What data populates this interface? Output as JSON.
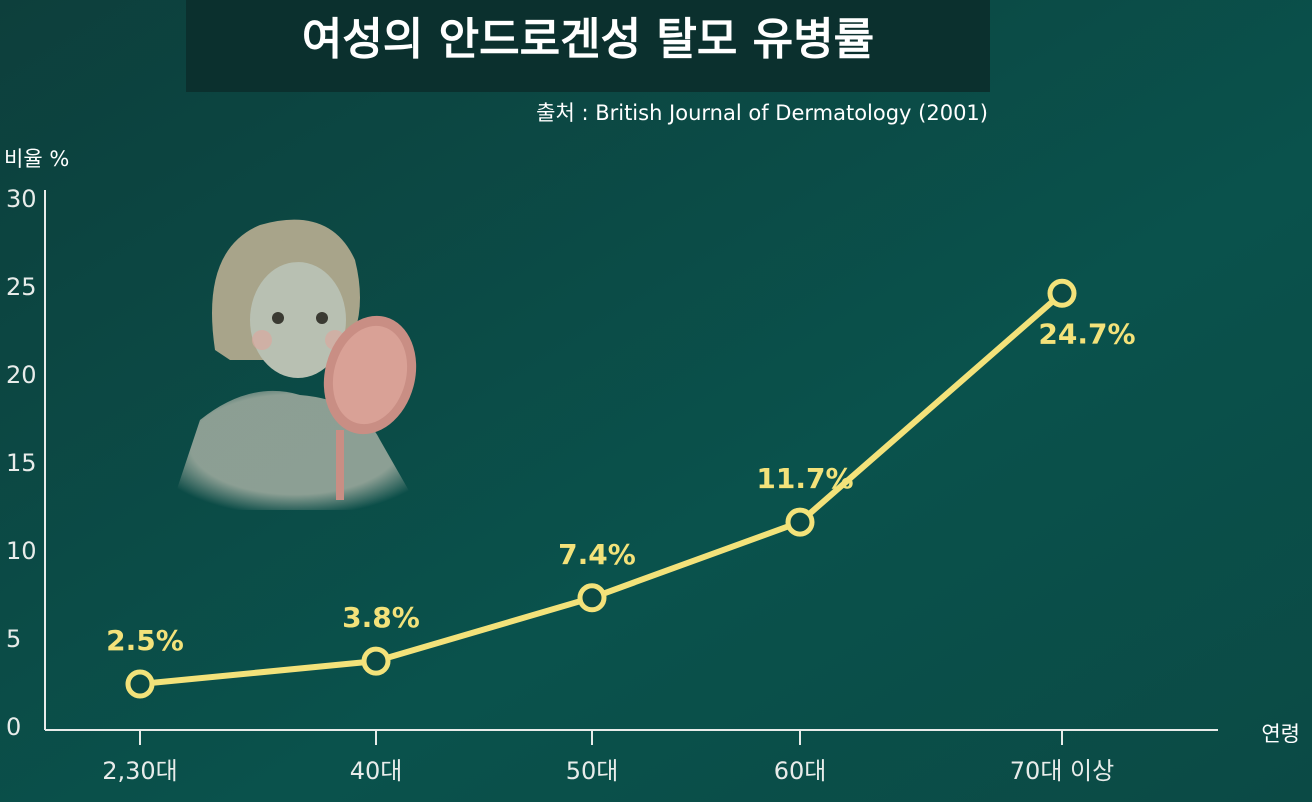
{
  "chart_data": {
    "type": "line",
    "title": "여성의 안드로겐성 탈모 유병률",
    "source": "출처 : British Journal of Dermatology (2001)",
    "y_label": "비율 %",
    "x_label": "연령",
    "categories": [
      "2,30대",
      "40대",
      "50대",
      "60대",
      "70대 이상"
    ],
    "series": [
      {
        "name": "유병률",
        "color": "#f3e27a",
        "values": [
          2.5,
          3.8,
          7.4,
          11.7,
          24.7
        ],
        "value_labels": [
          "2.5%",
          "3.8%",
          "7.4%",
          "11.7%",
          "24.7%"
        ]
      }
    ],
    "ylim": [
      0,
      30
    ],
    "yticks": [
      0,
      5,
      10,
      15,
      20,
      25,
      30
    ]
  }
}
